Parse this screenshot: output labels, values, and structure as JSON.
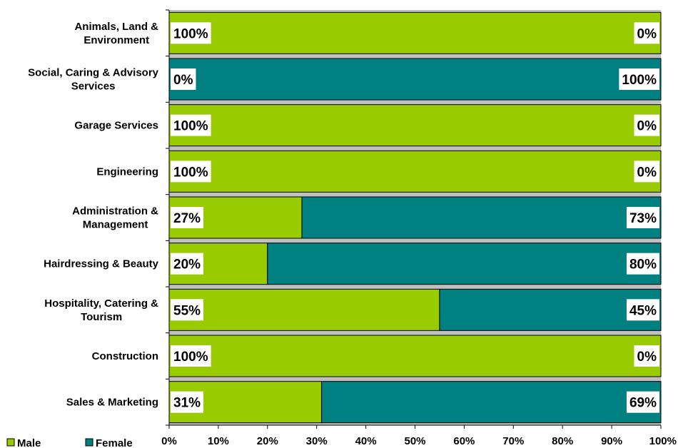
{
  "chart_data": {
    "type": "bar",
    "orientation": "horizontal",
    "stacked": "percent",
    "categories": [
      [
        "Animals, Land &",
        "Environment"
      ],
      [
        "Social, Caring & Advisory",
        "Services"
      ],
      [
        "Garage Services"
      ],
      [
        "Engineering"
      ],
      [
        "Administration &",
        "Management"
      ],
      [
        "Hairdressing & Beauty"
      ],
      [
        "Hospitality, Catering &",
        "Tourism"
      ],
      [
        "Construction"
      ],
      [
        "Sales & Marketing"
      ]
    ],
    "series": [
      {
        "name": "Male",
        "color": "#99cc00",
        "values": [
          100,
          0,
          100,
          100,
          27,
          20,
          55,
          100,
          31
        ]
      },
      {
        "name": "Female",
        "color": "#008080",
        "values": [
          0,
          100,
          0,
          0,
          73,
          80,
          45,
          0,
          69
        ]
      }
    ],
    "data_labels": {
      "male": [
        "100%",
        "0%",
        "100%",
        "100%",
        "27%",
        "20%",
        "55%",
        "100%",
        "31%"
      ],
      "female": [
        "0%",
        "100%",
        "0%",
        "0%",
        "73%",
        "80%",
        "45%",
        "0%",
        "69%"
      ]
    },
    "xticks": [
      "0%",
      "10%",
      "20%",
      "30%",
      "40%",
      "50%",
      "60%",
      "70%",
      "80%",
      "90%",
      "100%"
    ],
    "xlim": [
      0,
      100
    ],
    "grid": false,
    "legend": {
      "position": "bottom-left",
      "entries": [
        "Male",
        "Female"
      ]
    },
    "colors": {
      "male": "#99cc00",
      "female": "#008080",
      "gap": "#c0c0c0",
      "border": "#000000"
    }
  }
}
